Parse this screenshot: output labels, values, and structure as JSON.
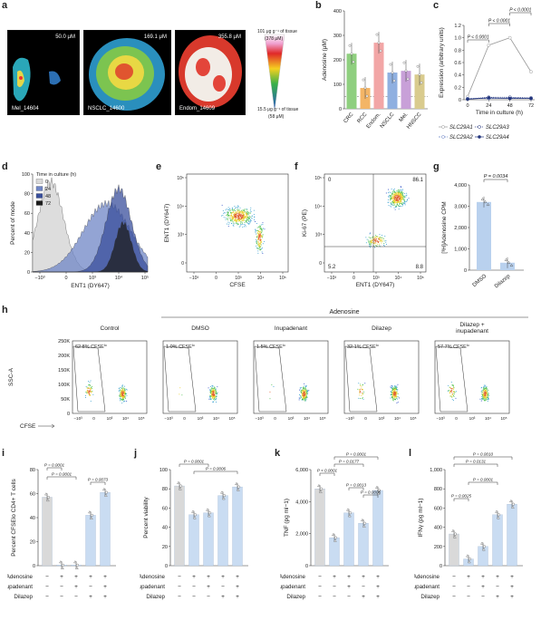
{
  "panel_letters": [
    "a",
    "b",
    "c",
    "d",
    "e",
    "f",
    "g",
    "h",
    "i",
    "j",
    "k",
    "l"
  ],
  "panel_a": {
    "tiles": [
      {
        "conc": "50.0 μM",
        "label": "Mel_14604"
      },
      {
        "conc": "169.1 μM",
        "label": "NSCLC_14600"
      },
      {
        "conc": "355.8 μM",
        "label": "Endom_14609"
      }
    ],
    "scale_top_line1": "101 μg g⁻¹ of tissue",
    "scale_top_line2": "(378 μM)",
    "scale_bottom_line1": "15.5 μg g⁻¹ of tissue",
    "scale_bottom_line2": "(58 μM)"
  },
  "chart_data": [
    {
      "id": "b",
      "type": "bar",
      "ylabel": "Adenosine (μM)",
      "ylim": [
        0,
        400
      ],
      "yticks": [
        "0",
        "100",
        "200",
        "300",
        "400"
      ],
      "categories": [
        "CRC",
        "RCC",
        "Endom.",
        "NSCLC",
        "Mel.",
        "HNSCC"
      ],
      "values": [
        225,
        85,
        270,
        148,
        155,
        140
      ],
      "colors": [
        "#8fcf7f",
        "#f3b566",
        "#f2a6a6",
        "#8fb0e0",
        "#c8a0d8",
        "#d9cb8e"
      ]
    },
    {
      "id": "c",
      "type": "line",
      "xlabel": "Time in culture (h)",
      "ylabel": "Expression (arbitrary units)",
      "x": [
        0,
        24,
        48,
        72
      ],
      "xticks": [
        "0",
        "24",
        "48",
        "72"
      ],
      "ylim": [
        0,
        1.2
      ],
      "yticks": [
        "0",
        "0.2",
        "0.4",
        "0.6",
        "0.8",
        "1.0",
        "1.2"
      ],
      "series": [
        {
          "name": "SLC29A1",
          "values": [
            0.05,
            0.88,
            1.0,
            0.45
          ]
        },
        {
          "name": "SLC29A2",
          "values": [
            0.02,
            0.02,
            0.03,
            0.02
          ]
        },
        {
          "name": "SLC29A3",
          "values": [
            0.01,
            0.04,
            0.04,
            0.03
          ]
        },
        {
          "name": "SLC29A4",
          "values": [
            0.01,
            0.03,
            0.02,
            0.02
          ]
        }
      ],
      "annotations": [
        "P < 0.0001",
        "P < 0.0001",
        "P < 0.0001"
      ]
    },
    {
      "id": "d",
      "type": "area",
      "xlabel": "ENT1 (DY647)",
      "ylabel": "Percent of mode",
      "legend_title": "Time in culture (h)",
      "legend": [
        "0",
        "24",
        "48",
        "72"
      ],
      "colors": [
        "#d9d9d9",
        "#6f86c6",
        "#394f9c",
        "#1c1c1c"
      ],
      "xticks": [
        "−10³",
        "0",
        "10³",
        "10⁴",
        "10⁵"
      ],
      "yticks": [
        "0",
        "20",
        "40",
        "60",
        "80",
        "100"
      ]
    },
    {
      "id": "e",
      "type": "scatter",
      "xlabel": "CFSE",
      "ylabel": "ENT1 (DY647)",
      "xticks": [
        "−10³",
        "0",
        "10³",
        "10⁴",
        "10⁵"
      ],
      "yticks": [
        "0",
        "10³",
        "10⁴",
        "10⁵"
      ]
    },
    {
      "id": "f",
      "type": "scatter",
      "xlabel": "ENT1 (DY647)",
      "ylabel": "Ki-67 (PE)",
      "xticks": [
        "−10³",
        "0",
        "10³",
        "10⁴",
        "10⁵"
      ],
      "yticks": [
        "0",
        "10³",
        "10⁴",
        "10⁵"
      ],
      "quadrants": {
        "ul": "0",
        "ur": "86.1",
        "ll": "5.2",
        "lr": "8.8"
      }
    },
    {
      "id": "g",
      "type": "bar",
      "ylabel": "[³H]Adenosine CPM",
      "ylim": [
        0,
        4000
      ],
      "yticks": [
        "0",
        "1,000",
        "2,000",
        "3,000",
        "4,000"
      ],
      "categories": [
        "DMSO",
        "Dilazep"
      ],
      "values": [
        3200,
        350
      ],
      "annotation": "P = 0.0034"
    },
    {
      "id": "h",
      "type": "scatter",
      "ylabel": "SSC-A",
      "xlabel": "CFSE",
      "group_label": "Adenosine",
      "yticks": [
        "0",
        "50K",
        "100K",
        "150K",
        "200K",
        "250K"
      ],
      "xticks": [
        "−10³",
        "0",
        "10³",
        "10⁴",
        "10⁵"
      ],
      "plots": [
        {
          "title": "Control",
          "gate": "62.8% CFSE",
          "sup": "lo",
          "spread": 1.0
        },
        {
          "title": "DMSO",
          "gate": "1.0% CFSE",
          "sup": "lo",
          "spread": 0.05
        },
        {
          "title": "Inupadenant",
          "gate": "1.5% CFSE",
          "sup": "lo",
          "spread": 0.07
        },
        {
          "title": "Dilazep",
          "gate": "32.1% CFSE",
          "sup": "lo",
          "spread": 0.55
        },
        {
          "title": "Dilazep +\ninupadenant",
          "gate": "57.7% CFSE",
          "sup": "lo",
          "spread": 0.9
        }
      ]
    },
    {
      "id": "i",
      "type": "bar",
      "ylabel": "Percent CFSElo CD4+ T cells",
      "ylim": [
        0,
        80
      ],
      "yticks": [
        "0",
        "20",
        "40",
        "60",
        "80"
      ],
      "values": [
        57,
        0.5,
        0.5,
        42,
        61
      ],
      "colors": [
        "#d9d9d9",
        "#c9dcf2",
        "#c9dcf2",
        "#c9dcf2",
        "#c9dcf2"
      ],
      "annotations": [
        "P = 0.0001",
        "P = 0.0001",
        "P = 0.0073"
      ]
    },
    {
      "id": "j",
      "type": "bar",
      "ylabel": "Percent viability",
      "ylim": [
        0,
        100
      ],
      "yticks": [
        "0",
        "20",
        "40",
        "60",
        "80",
        "100"
      ],
      "values": [
        83,
        53,
        55,
        73,
        82
      ],
      "colors": [
        "#d9d9d9",
        "#c9dcf2",
        "#c9dcf2",
        "#c9dcf2",
        "#c9dcf2"
      ],
      "annotations": [
        "P = 0.0001",
        "P = 0.0006"
      ]
    },
    {
      "id": "k",
      "type": "bar",
      "ylabel": "TNF (pg ml−1)",
      "ylim": [
        0,
        6000
      ],
      "yticks": [
        "0",
        "2,000",
        "4,000",
        "6,000"
      ],
      "values": [
        4800,
        1750,
        3300,
        2650,
        4700
      ],
      "colors": [
        "#d9d9d9",
        "#c9dcf2",
        "#c9dcf2",
        "#c9dcf2",
        "#c9dcf2"
      ],
      "annotations": [
        "P < 0.0001",
        "P = 0.0001",
        "P = 0.0177",
        "P = 0.0013",
        "P = 0.0005"
      ]
    },
    {
      "id": "l",
      "type": "bar",
      "ylabel": "IFNγ (pg ml−1)",
      "ylim": [
        0,
        1000
      ],
      "yticks": [
        "0",
        "200",
        "400",
        "600",
        "800",
        "1,000"
      ],
      "values": [
        330,
        70,
        200,
        530,
        640
      ],
      "colors": [
        "#d9d9d9",
        "#c9dcf2",
        "#c9dcf2",
        "#c9dcf2",
        "#c9dcf2"
      ],
      "annotations": [
        "P = 0.0010",
        "P = 0.0131",
        "P = 0.0001",
        "P = 0.0025"
      ]
    }
  ],
  "treatments": {
    "rows": [
      "Adenosine",
      "Inupadenant",
      "Dilazep"
    ],
    "signs": [
      [
        "−",
        "+",
        "+",
        "+",
        "+"
      ],
      [
        "−",
        "−",
        "+",
        "−",
        "+"
      ],
      [
        "−",
        "−",
        "−",
        "+",
        "+"
      ]
    ]
  }
}
